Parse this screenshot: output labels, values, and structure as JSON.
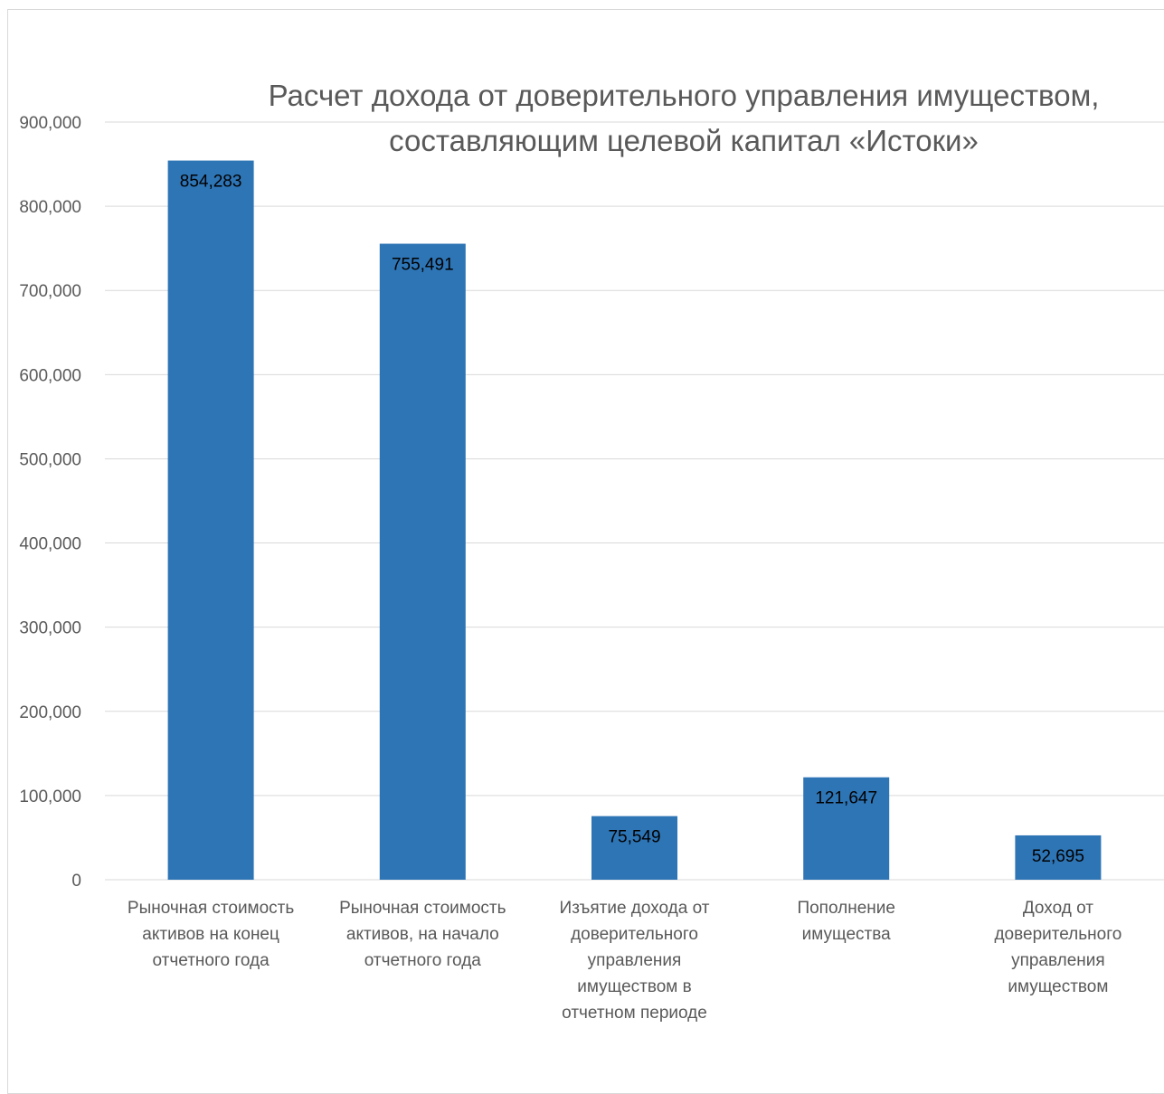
{
  "chart_data": {
    "type": "bar",
    "title_lines": [
      "Расчет дохода от доверительного управления имуществом,",
      "составляющим целевой капитал «Истоки»"
    ],
    "categories": [
      [
        "Рыночная стоимость",
        "активов на конец",
        "отчетного года"
      ],
      [
        "Рыночная стоимость",
        "активов, на начало",
        "отчетного года"
      ],
      [
        "Изъятие дохода от",
        "доверительного",
        "управления",
        "имуществом в",
        "отчетном периоде"
      ],
      [
        "Пополнение",
        "имущества"
      ],
      [
        "Доход от",
        "доверительного",
        "управления",
        "имуществом"
      ]
    ],
    "values": [
      854283,
      755491,
      75549,
      121647,
      52695
    ],
    "data_labels": [
      "854,283",
      "755,491",
      "75,549",
      "121,647",
      "52,695"
    ],
    "ylim": [
      0,
      900000
    ],
    "yticks": [
      0,
      100000,
      200000,
      300000,
      400000,
      500000,
      600000,
      700000,
      800000,
      900000
    ],
    "ytick_labels": [
      "0",
      "100,000",
      "200,000",
      "300,000",
      "400,000",
      "500,000",
      "600,000",
      "700,000",
      "800,000",
      "900,000"
    ],
    "grid": true,
    "legend": "none",
    "bar_color": "#2E75B6",
    "grid_color": "#D9D9D9"
  }
}
